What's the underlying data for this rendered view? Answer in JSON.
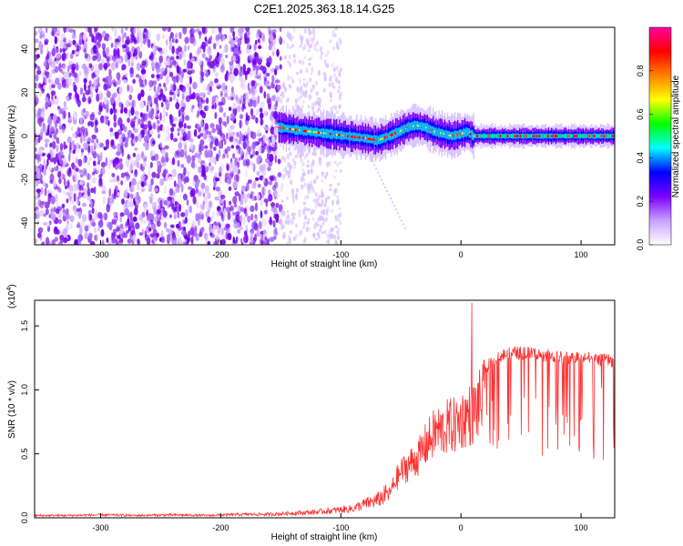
{
  "chart_data": [
    {
      "type": "heatmap",
      "title": "C2E1.2025.363.18.14.G25",
      "xlabel": "Height of straight line (km)",
      "ylabel": "Frequency (Hz)",
      "xlim": [
        -355,
        128
      ],
      "ylim": [
        -50,
        50
      ],
      "x_ticks": [
        -300,
        -200,
        -100,
        0,
        100
      ],
      "x_tick_labels": [
        "-300",
        "-200",
        "-100",
        "0",
        "100"
      ],
      "y_ticks": [
        -40,
        -20,
        0,
        20,
        40
      ],
      "y_tick_labels": [
        "-40",
        "-20",
        "0",
        "20",
        "40"
      ],
      "ridge": {
        "x": [
          -152,
          -140,
          -125,
          -110,
          -95,
          -80,
          -70,
          -60,
          -52,
          -45,
          -38,
          -30,
          -22,
          -15,
          -8,
          0,
          5,
          10,
          30,
          60,
          90,
          128
        ],
        "y": [
          4,
          3,
          2,
          1,
          0,
          -1,
          -2,
          0,
          2,
          4,
          5,
          4,
          2,
          1,
          0,
          1,
          2,
          0,
          0,
          0,
          0,
          0
        ]
      },
      "colorbar": {
        "label": "Normalized spectral amplitude",
        "range": [
          0,
          1
        ],
        "ticks": [
          0.0,
          0.2,
          0.4,
          0.6,
          0.8
        ],
        "tick_labels": [
          "0.0",
          "0.2",
          "0.4",
          "0.6",
          "0.8"
        ],
        "colors": [
          "#ffffff",
          "#c9a0ff",
          "#7a00ff",
          "#0000ff",
          "#00ffff",
          "#00ff00",
          "#ffff00",
          "#ff8000",
          "#ff0000",
          "#ff00a0"
        ]
      }
    },
    {
      "type": "line",
      "title": "",
      "xlabel": "Height of straight line (km)",
      "ylabel": "SNR (10 * v/v)",
      "scale_label": "(x10",
      "scale_exponent": "4",
      "scale_close": ")",
      "xlim": [
        -355,
        128
      ],
      "ylim": [
        0,
        1.7
      ],
      "x_ticks": [
        -300,
        -200,
        -100,
        0,
        100
      ],
      "x_tick_labels": [
        "-300",
        "-200",
        "-100",
        "0",
        "100"
      ],
      "y_ticks": [
        0.0,
        0.5,
        1.0,
        1.5
      ],
      "y_tick_labels": [
        "0.0",
        "0.5",
        "1.0",
        "1.5"
      ],
      "series": [
        {
          "name": "SNR",
          "color": "#ff3030",
          "x": [
            -355,
            -330,
            -300,
            -270,
            -240,
            -210,
            -180,
            -160,
            -140,
            -120,
            -110,
            -100,
            -90,
            -80,
            -70,
            -60,
            -55,
            -50,
            -45,
            -40,
            -35,
            -30,
            -25,
            -20,
            -15,
            -10,
            -5,
            0,
            5,
            10,
            15,
            20,
            25,
            30,
            40,
            50,
            60,
            70,
            80,
            90,
            100,
            110,
            120,
            128
          ],
          "y": [
            0.02,
            0.02,
            0.025,
            0.02,
            0.025,
            0.02,
            0.03,
            0.03,
            0.04,
            0.05,
            0.06,
            0.07,
            0.08,
            0.12,
            0.15,
            0.22,
            0.35,
            0.45,
            0.5,
            0.55,
            0.6,
            0.7,
            0.78,
            0.85,
            0.85,
            0.9,
            0.9,
            0.95,
            1.0,
            1.02,
            1.1,
            1.2,
            1.25,
            1.3,
            1.32,
            1.33,
            1.32,
            1.31,
            1.3,
            1.28,
            1.3,
            1.28,
            1.27,
            1.26
          ]
        }
      ],
      "spike": {
        "x": 9,
        "y": 1.68
      }
    }
  ]
}
